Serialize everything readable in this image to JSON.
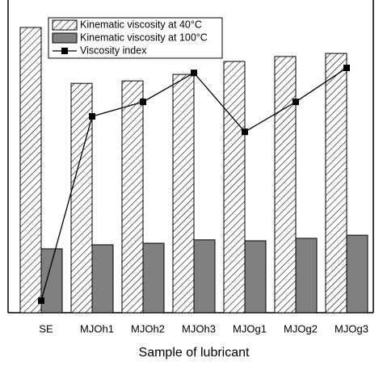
{
  "chart_data": {
    "type": "bar",
    "x_label": "Sample of lubricant",
    "categories": [
      "SE",
      "MJOh1",
      "MJOh2",
      "MJOh3",
      "MJOg1",
      "MJOg2",
      "MJOg3"
    ],
    "series": [
      {
        "name": "Kinematic viscosity at 40°C",
        "color": "#000000",
        "hatch": true,
        "values": [
          92.4,
          74.3,
          75.1,
          77.2,
          81.4,
          83.0,
          84.0
        ]
      },
      {
        "name": "Kinematic viscosity at 100°C",
        "color": "#808080",
        "values": [
          20.7,
          22.0,
          22.5,
          23.6,
          23.3,
          24.1,
          25.1
        ]
      },
      {
        "name": "Viscosity index",
        "type": "line",
        "color": "#000000",
        "axis": "y2",
        "values": [
          3.9,
          63.6,
          68.3,
          77.7,
          58.6,
          68.3,
          79.3
        ]
      }
    ],
    "ylim": [
      0,
      100
    ],
    "y2lim": [
      0,
      100
    ]
  }
}
